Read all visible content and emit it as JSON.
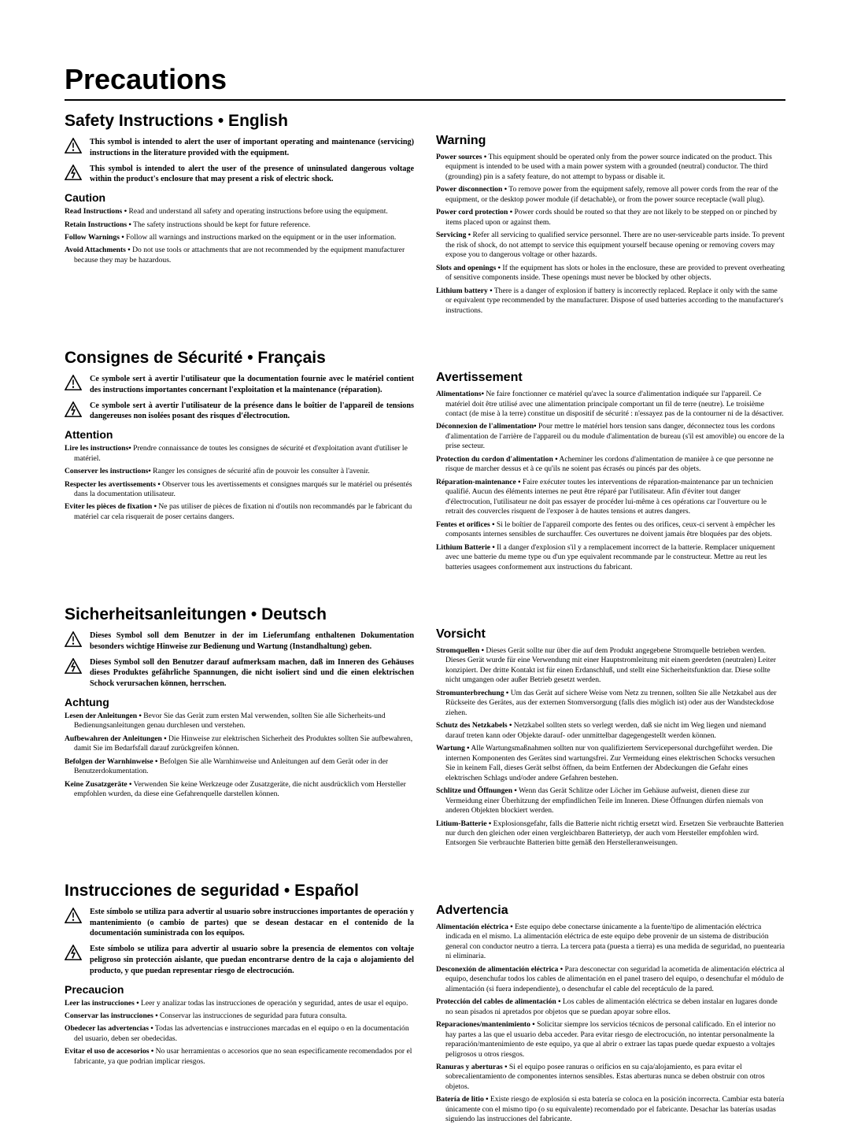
{
  "page_title": "Precautions",
  "icon_warning_svg": "<svg viewBox='0 0 24 22' width='22' height='20'><polygon points='12,1 23,21 1,21' fill='none' stroke='#000' stroke-width='1.7'/><line x1='12' y1='7' x2='12' y2='14' stroke='#000' stroke-width='1.7'/><circle cx='12' cy='17.3' r='1.3' fill='#000'/></svg>",
  "icon_shock_svg": "<svg viewBox='0 0 24 22' width='22' height='20'><polygon points='12,1 23,21 1,21' fill='none' stroke='#000' stroke-width='1.7'/><polyline points='13,6 10,12 14,12 11,19' fill='none' stroke='#000' stroke-width='1.7'/><polygon points='11,19 10.2,16.3 12.8,17.4' fill='#000'/></svg>",
  "languages": [
    {
      "left_heading": "Safety Instructions • English",
      "symbol1": "This symbol is intended to alert the user of important operating and maintenance (servicing) instructions in the literature provided with the equipment.",
      "symbol2": "This symbol is intended to alert the user of the presence of uninsulated dangerous voltage within the product's enclosure that may present a risk of electric shock.",
      "caution_heading": "Caution",
      "caution_items": [
        {
          "lead": "Read Instructions •",
          "text": " Read and understand all safety and operating instructions before using the equipment."
        },
        {
          "lead": "Retain Instructions •",
          "text": " The safety instructions should be kept for future reference."
        },
        {
          "lead": "Follow Warnings •",
          "text": " Follow all warnings and instructions marked on the equipment or in the user information."
        },
        {
          "lead": "Avoid Attachments •",
          "text": " Do not use tools or attachments that are not recommended by the equipment manufacturer because they may be hazardous."
        }
      ],
      "warn_heading": "Warning",
      "warn_items": [
        {
          "lead": "Power sources •",
          "text": " This equipment should be operated only from the power source indicated on the product. This equipment is intended to be used with a main power system with a grounded (neutral) conductor. The third (grounding) pin is a safety feature, do not attempt to bypass or disable it."
        },
        {
          "lead": "Power disconnection •",
          "text": " To remove power from the equipment safely, remove all power cords from the rear of the equipment, or the desktop power module (if detachable), or from the power source receptacle (wall plug)."
        },
        {
          "lead": "Power cord protection •",
          "text": " Power cords should be routed so that they are not likely to be stepped on or pinched by items placed upon or against them."
        },
        {
          "lead": "Servicing •",
          "text": " Refer all servicing to qualified service personnel. There are no user-serviceable parts inside. To prevent the risk of shock, do not attempt to service this equipment yourself because opening or removing covers may expose you to dangerous voltage or other hazards."
        },
        {
          "lead": "Slots and openings •",
          "text": " If the equipment has slots or holes in the enclosure, these are provided to prevent overheating of sensitive components inside. These openings must never be blocked by other objects."
        },
        {
          "lead": "Lithium battery •",
          "text": " There is a danger of explosion if battery is incorrectly replaced. Replace it only with the same or equivalent type recommended by the manufacturer. Dispose of used batteries according to the manufacturer's instructions."
        }
      ]
    },
    {
      "left_heading": "Consignes de Sécurité • Français",
      "symbol1": "Ce symbole sert à avertir l'utilisateur que la documentation fournie avec le matériel contient des instructions importantes concernant l'exploitation et la maintenance (réparation).",
      "symbol2": "Ce symbole sert à avertir l'utilisateur de la présence dans le boîtier de l'appareil de tensions dangereuses non isolées posant des risques d'électrocution.",
      "caution_heading": "Attention",
      "caution_items": [
        {
          "lead": "Lire les instructions•",
          "text": " Prendre connaissance de toutes les consignes de sécurité et d'exploitation avant d'utiliser le matériel."
        },
        {
          "lead": "Conserver les instructions•",
          "text": " Ranger les consignes de sécurité afin de pouvoir les consulter à l'avenir."
        },
        {
          "lead": "Respecter les avertissements •",
          "text": " Observer tous les avertissements et consignes marqués sur le matériel ou présentés dans la documentation utilisateur."
        },
        {
          "lead": "Eviter les pièces de fixation •",
          "text": " Ne pas utiliser de pièces de fixation ni d'outils non recommandés par le fabricant du matériel car cela risquerait de poser certains dangers."
        }
      ],
      "warn_heading": "Avertissement",
      "warn_items": [
        {
          "lead": "Alimentations•",
          "text": " Ne faire fonctionner ce matériel qu'avec la source d'alimentation indiquée sur l'appareil. Ce matériel doit être utilisé avec une alimentation principale comportant un fil de terre (neutre). Le troisième contact (de mise à la terre) constitue un dispositif de sécurité : n'essayez pas de la contourner ni de la désactiver."
        },
        {
          "lead": "Déconnexion de l'alimentation•",
          "text": " Pour mettre le matériel hors tension sans danger, déconnectez tous les cordons d'alimentation de l'arrière de l'appareil ou du module d'alimentation de bureau (s'il est amovible) ou encore de la prise secteur."
        },
        {
          "lead": "Protection du cordon d'alimentation •",
          "text": " Acheminer les cordons d'alimentation de manière à ce que personne ne risque de marcher dessus et à ce qu'ils ne soient pas écrasés ou pincés par des objets."
        },
        {
          "lead": "Réparation-maintenance •",
          "text": " Faire exécuter toutes les interventions de réparation-maintenance par un technicien qualifié. Aucun des éléments internes ne peut être réparé par l'utilisateur. Afin d'éviter tout danger d'électrocution, l'utilisateur ne doit pas essayer de procéder lui-même à ces opérations car l'ouverture ou le retrait des couvercles risquent de l'exposer à de hautes tensions et autres dangers."
        },
        {
          "lead": "Fentes et orifices •",
          "text": " Si le boîtier de l'appareil comporte des fentes ou des orifices, ceux-ci servent à empêcher les composants internes sensibles de surchauffer. Ces ouvertures ne doivent jamais être bloquées par des objets."
        },
        {
          "lead": "Lithium Batterie •",
          "text": " Il a danger d'explosion s'il y a remplacement incorrect de la batterie. Remplacer uniquement avec une batterie du meme type ou d'un ype equivalent recommande par le constructeur. Mettre au reut les batteries usagees conformement aux instructions du fabricant."
        }
      ]
    },
    {
      "left_heading": "Sicherheitsanleitungen • Deutsch",
      "symbol1": "Dieses Symbol soll dem Benutzer in der im Lieferumfang enthaltenen Dokumentation besonders wichtige Hinweise zur Bedienung und Wartung (Instandhaltung) geben.",
      "symbol2": "Dieses Symbol soll den Benutzer darauf aufmerksam machen, daß im Inneren des Gehäuses dieses Produktes gefährliche Spannungen, die nicht isoliert sind und die einen elektrischen Schock verursachen können, herrschen.",
      "caution_heading": "Achtung",
      "caution_items": [
        {
          "lead": "Lesen der Anleitungen •",
          "text": " Bevor Sie das Gerät zum ersten Mal verwenden, sollten Sie alle Sicherheits-und Bedienungsanleitungen genau durchlesen und verstehen."
        },
        {
          "lead": "Aufbewahren der Anleitungen •",
          "text": " Die Hinweise zur elektrischen Sicherheit des Produktes sollten Sie aufbewahren, damit Sie im Bedarfsfall darauf zurückgreifen können."
        },
        {
          "lead": "Befolgen der Warnhinweise •",
          "text": " Befolgen Sie alle Warnhinweise und Anleitungen auf dem Gerät oder in der Benutzerdokumentation."
        },
        {
          "lead": "Keine Zusatzgeräte •",
          "text": " Verwenden Sie keine Werkzeuge oder Zusatzgeräte, die nicht ausdrücklich vom Hersteller empfohlen wurden, da diese eine Gefahrenquelle darstellen können."
        }
      ],
      "warn_heading": "Vorsicht",
      "warn_items": [
        {
          "lead": "Stromquellen •",
          "text": " Dieses Gerät sollte nur über die auf dem Produkt angegebene Stromquelle betrieben werden. Dieses Gerät wurde für eine Verwendung mit einer Hauptstromleitung mit einem geerdeten (neutralen) Leiter konzipiert. Der dritte Kontakt ist für einen Erdanschluß, und stellt eine Sicherheitsfunktion dar. Diese sollte nicht umgangen oder außer Betrieb gesetzt werden."
        },
        {
          "lead": "Stromunterbrechung •",
          "text": " Um das Gerät auf sichere Weise vom Netz zu trennen, sollten Sie alle Netzkabel aus der Rückseite des Gerätes, aus der externen Stomversorgung (falls dies möglich ist) oder aus der Wandsteckdose ziehen."
        },
        {
          "lead": "Schutz des Netzkabels •",
          "text": " Netzkabel sollten stets so verlegt werden, daß sie nicht im Weg liegen und niemand darauf treten kann oder Objekte darauf- oder unmittelbar dagegengestellt werden können."
        },
        {
          "lead": "Wartung •",
          "text": " Alle Wartungsmaßnahmen sollten nur von qualifiziertem Servicepersonal durchgeführt werden. Die internen Komponenten des Gerätes sind wartungsfrei. Zur Vermeidung eines elektrischen Schocks versuchen Sie in keinem Fall, dieses Gerät selbst öffnen, da beim Entfernen der Abdeckungen die Gefahr eines elektrischen Schlags und/oder andere Gefahren bestehen."
        },
        {
          "lead": "Schlitze und Öffnungen •",
          "text": " Wenn das Gerät Schlitze oder Löcher im Gehäuse aufweist, dienen diese zur Vermeidung einer Überhitzung der empfindlichen Teile im Inneren. Diese Öffnungen dürfen niemals von anderen Objekten blockiert werden."
        },
        {
          "lead": "Litium-Batterie •",
          "text": " Explosionsgefahr, falls die Batterie nicht richtig ersetzt wird. Ersetzen Sie verbrauchte Batterien nur durch den gleichen oder einen vergleichbaren Batterietyp, der auch vom Hersteller empfohlen wird. Entsorgen Sie verbrauchte Batterien bitte gemäß den Herstelleranweisungen."
        }
      ]
    },
    {
      "left_heading": "Instrucciones de seguridad • Español",
      "symbol1": "Este símbolo se utiliza para advertir al usuario sobre instrucciones importantes de operación y mantenimiento (o cambio de partes) que se desean destacar en el contenido de la documentación suministrada con los equipos.",
      "symbol2": "Este símbolo se utiliza para advertir al usuario sobre la presencia de elementos con voltaje peligroso sin protección aislante, que puedan encontrarse dentro de la caja o alojamiento del producto, y que puedan representar riesgo de electrocución.",
      "caution_heading": "Precaucion",
      "caution_items": [
        {
          "lead": "Leer las instrucciones •",
          "text": " Leer y analizar todas las instrucciones de operación y seguridad, antes de usar el equipo."
        },
        {
          "lead": "Conservar las instrucciones •",
          "text": " Conservar las instrucciones de seguridad para futura consulta."
        },
        {
          "lead": "Obedecer las advertencias •",
          "text": " Todas las advertencias e instrucciones marcadas en el equipo o en la documentación del usuario, deben ser obedecidas."
        },
        {
          "lead": "Evitar el uso de accesorios •",
          "text": " No usar herramientas o accesorios que no sean especificamente recomendados por el fabricante, ya que podrian implicar riesgos."
        }
      ],
      "warn_heading": "Advertencia",
      "warn_items": [
        {
          "lead": "Alimentación eléctrica •",
          "text": " Este equipo debe conectarse únicamente a la fuente/tipo de alimentación eléctrica indicada en el mismo. La alimentación eléctrica de este equipo debe provenir de un sistema de distribución general con conductor neutro a tierra. La tercera pata (puesta a tierra) es una medida de seguridad, no puentearia ni eliminaria."
        },
        {
          "lead": "Desconexión de alimentación eléctrica •",
          "text": " Para desconectar con seguridad la acometida de alimentación eléctrica al equipo, desenchufar todos los cables de alimentación en el panel trasero del equipo, o desenchufar el módulo de alimentación (si fuera independiente), o desenchufar el cable del receptáculo de la pared."
        },
        {
          "lead": "Protección del cables de alimentación •",
          "text": " Los cables de alimentación eléctrica se deben instalar en lugares donde no sean pisados ni apretados por objetos que se puedan apoyar sobre ellos."
        },
        {
          "lead": "Reparaciones/mantenimiento •",
          "text": " Solicitar siempre los servicios técnicos de personal calificado. En el interior no hay partes a las que el usuario deba acceder. Para evitar riesgo de electrocución, no intentar personalmente la reparación/mantenimiento de este equipo, ya que al abrir o extraer las tapas puede quedar expuesto a voltajes peligrosos u otros riesgos."
        },
        {
          "lead": "Ranuras y aberturas •",
          "text": " Si el equipo posee ranuras o orificios en su caja/alojamiento, es para evitar el sobrecalientamiento de componentes internos sensibles. Estas aberturas nunca se deben obstruir con otros objetos."
        },
        {
          "lead": "Batería de litio •",
          "text": " Existe riesgo de explosión si esta batería se coloca en la posición incorrecta. Cambiar esta batería únicamente con el mismo tipo (o su equivalente) recomendado por el fabricante. Desachar las baterías usadas siguiendo las instrucciones del fabricante."
        }
      ]
    }
  ]
}
